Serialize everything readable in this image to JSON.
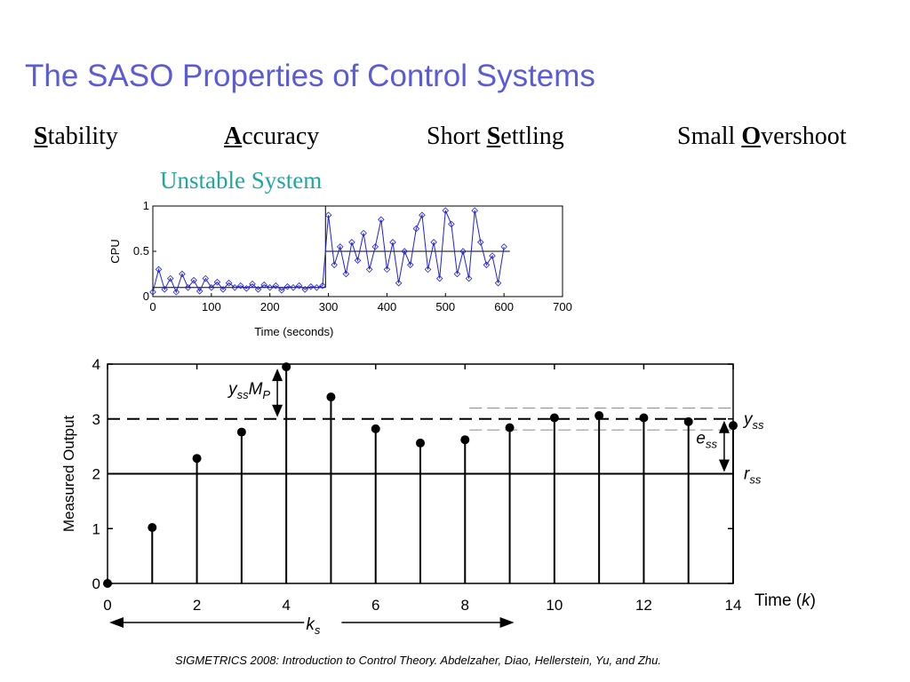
{
  "title": "The SASO Properties of Control Systems",
  "properties": [
    {
      "key": "S",
      "rest": "tability",
      "prefix": ""
    },
    {
      "key": "A",
      "rest": "ccuracy",
      "prefix": ""
    },
    {
      "key": "S",
      "rest": "ettling",
      "prefix": "Short "
    },
    {
      "key": "O",
      "rest": "vershoot",
      "prefix": "Small "
    }
  ],
  "subtitle": "Unstable System",
  "footer": "SIGMETRICS 2008: Introduction to Control Theory. Abdelzaher, Diao, Hellerstein, Yu, and Zhu.",
  "colors": {
    "title": "#5b5bd8",
    "subtitle": "#1fa8a0",
    "cpu_series": "#1f1fdd"
  },
  "chart_data": [
    {
      "type": "line",
      "xlabel": "Time (seconds)",
      "ylabel": "CPU",
      "xlim": [
        0,
        700
      ],
      "ylim": [
        0,
        1
      ],
      "x_ticks": [
        "0",
        "100",
        "200",
        "300",
        "400",
        "500",
        "600",
        "700"
      ],
      "y_ticks": [
        "0",
        "0.5",
        "1"
      ],
      "reference": [
        {
          "x": [
            0,
            295
          ],
          "y": 0.1
        },
        {
          "x": [
            295,
            610
          ],
          "y": 0.5
        }
      ],
      "step_at": 295,
      "series": [
        {
          "x": [
            0,
            10,
            20,
            30,
            40,
            50,
            60,
            70,
            80,
            90,
            100,
            110,
            120,
            130,
            140,
            150,
            160,
            170,
            180,
            190,
            200,
            210,
            220,
            230,
            240,
            250,
            260,
            270,
            280,
            290,
            300,
            310,
            320,
            330,
            340,
            350,
            360,
            370,
            380,
            390,
            400,
            410,
            420,
            430,
            440,
            450,
            460,
            470,
            480,
            490,
            500,
            510,
            520,
            530,
            540,
            550,
            560,
            570,
            580,
            590,
            600
          ],
          "y": [
            0.05,
            0.3,
            0.08,
            0.2,
            0.05,
            0.25,
            0.1,
            0.18,
            0.06,
            0.2,
            0.1,
            0.16,
            0.08,
            0.15,
            0.1,
            0.12,
            0.09,
            0.14,
            0.08,
            0.13,
            0.1,
            0.12,
            0.07,
            0.11,
            0.1,
            0.12,
            0.08,
            0.11,
            0.1,
            0.12,
            0.9,
            0.35,
            0.55,
            0.25,
            0.6,
            0.4,
            0.7,
            0.3,
            0.55,
            0.85,
            0.3,
            0.6,
            0.15,
            0.5,
            0.35,
            0.75,
            0.9,
            0.3,
            0.6,
            0.2,
            0.95,
            0.8,
            0.25,
            0.5,
            0.2,
            0.95,
            0.6,
            0.35,
            0.45,
            0.15,
            0.55
          ]
        }
      ]
    },
    {
      "type": "stem",
      "xlabel": "Time (k)",
      "ylabel": "Measured Output",
      "xlim": [
        0,
        14
      ],
      "ylim": [
        0,
        4
      ],
      "x_ticks": [
        "0",
        "2",
        "4",
        "6",
        "8",
        "10",
        "12",
        "14"
      ],
      "y_ticks": [
        "0",
        "1",
        "2",
        "3",
        "4"
      ],
      "x": [
        0,
        1,
        2,
        3,
        4,
        5,
        6,
        7,
        8,
        9,
        10,
        11,
        12,
        13,
        14
      ],
      "values": [
        0,
        1.02,
        2.28,
        2.76,
        3.95,
        3.4,
        2.82,
        2.56,
        2.62,
        2.84,
        3.02,
        3.06,
        3.02,
        2.95,
        2.88
      ],
      "y_ss": 3,
      "r_ss": 2,
      "band": [
        2.8,
        3.2
      ],
      "annotations": {
        "overshoot": "y_ss M_P",
        "y_ss_label": "y",
        "y_ss_sub": "ss",
        "e_ss_label": "e",
        "e_ss_sub": "ss",
        "r_ss_label": "r",
        "r_ss_sub": "ss",
        "ks_label": "k",
        "ks_sub": "s",
        "yssmp_y": "y",
        "yssmp_ysub": "ss",
        "yssmp_m": "M",
        "yssmp_msub": "P"
      }
    }
  ]
}
